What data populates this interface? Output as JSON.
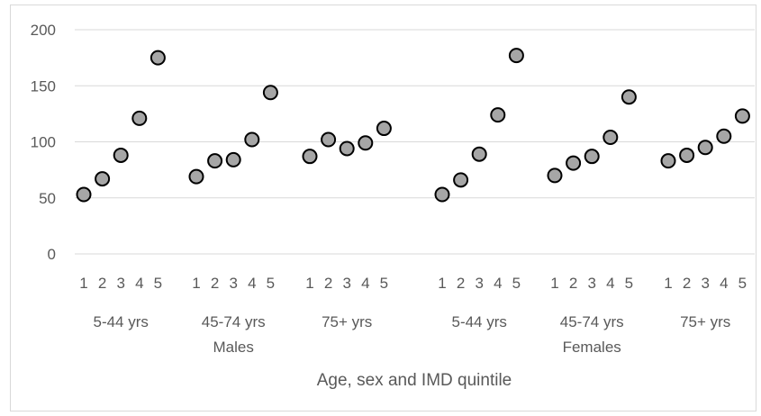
{
  "chart_data": {
    "type": "scatter",
    "title": "",
    "xlabel": "Age, sex and IMD quintile",
    "ylabel": "",
    "ylim": [
      0,
      200
    ],
    "yticks": [
      "0",
      "50",
      "100",
      "150",
      "200"
    ],
    "grid": true,
    "legend": "none",
    "marker_fill": "#a6a6a6",
    "marker_stroke": "#000000",
    "gridline_color": "#d9d9d9",
    "sex_groups": [
      {
        "label": "Males",
        "age_groups": [
          {
            "label": "5-44 yrs",
            "quintiles": [
              "1",
              "2",
              "3",
              "4",
              "5"
            ],
            "values": [
              53,
              67,
              88,
              121,
              175
            ]
          },
          {
            "label": "45-74 yrs",
            "quintiles": [
              "1",
              "2",
              "3",
              "4",
              "5"
            ],
            "values": [
              69,
              83,
              84,
              102,
              144
            ]
          },
          {
            "label": "75+ yrs",
            "quintiles": [
              "1",
              "2",
              "3",
              "4",
              "5"
            ],
            "values": [
              87,
              102,
              94,
              99,
              112
            ]
          }
        ]
      },
      {
        "label": "Females",
        "age_groups": [
          {
            "label": "5-44 yrs",
            "quintiles": [
              "1",
              "2",
              "3",
              "4",
              "5"
            ],
            "values": [
              53,
              66,
              89,
              124,
              177
            ]
          },
          {
            "label": "45-74 yrs",
            "quintiles": [
              "1",
              "2",
              "3",
              "4",
              "5"
            ],
            "values": [
              70,
              81,
              87,
              104,
              140
            ]
          },
          {
            "label": "75+ yrs",
            "quintiles": [
              "1",
              "2",
              "3",
              "4",
              "5"
            ],
            "values": [
              83,
              88,
              95,
              105,
              123
            ]
          }
        ]
      }
    ]
  }
}
